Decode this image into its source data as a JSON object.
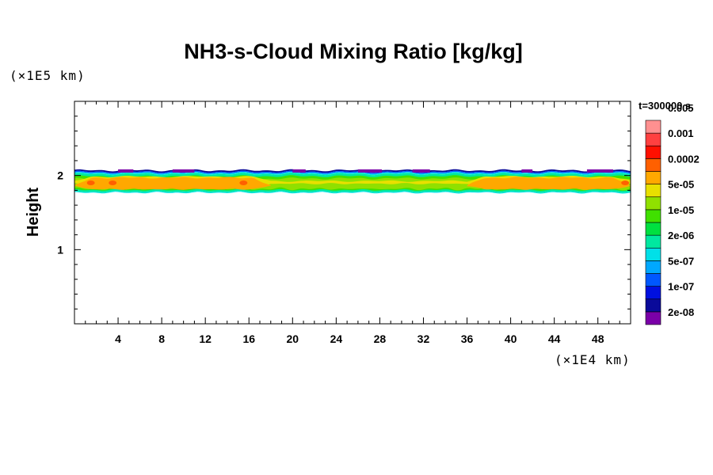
{
  "chart_data": {
    "type": "heatmap",
    "title": "NH3-s-Cloud Mixing Ratio [kg/kg]",
    "xlabel": "",
    "ylabel": "Height",
    "x_unit_label": "(×1E4 km)",
    "y_unit_label": "(×1E5 km)",
    "time_label": "t=300000 s",
    "xlim": [
      0,
      51
    ],
    "ylim": [
      0,
      3
    ],
    "x_ticks": [
      4,
      8,
      12,
      16,
      20,
      24,
      28,
      32,
      36,
      40,
      44,
      48
    ],
    "x_tick_labels": [
      "4",
      "8",
      "12",
      "16",
      "20",
      "24",
      "28",
      "32",
      "36",
      "40",
      "44",
      "48"
    ],
    "y_ticks": [
      1,
      2
    ],
    "y_tick_labels": [
      "1",
      "2"
    ],
    "colorbar": {
      "colors": [
        "#7a00a8",
        "#0a0a9a",
        "#0010e0",
        "#0058ff",
        "#00a8ff",
        "#00e0e8",
        "#00e8a0",
        "#00e040",
        "#40e000",
        "#90e000",
        "#e8e000",
        "#ffa800",
        "#ff6000",
        "#ff1000",
        "#ff4040",
        "#ff9090"
      ],
      "labels": [
        "2e-08",
        "1e-07",
        "5e-07",
        "2e-06",
        "1e-05",
        "5e-05",
        "0.0002",
        "0.001",
        "0.005"
      ]
    },
    "cloud_layer": {
      "base_height": 1.78,
      "top_height": 2.07,
      "core_level": "0.0002",
      "core_segments": [
        [
          0,
          18
        ],
        [
          36,
          51
        ]
      ],
      "max_spots_x": [
        1.5,
        3.5,
        15.5,
        50.5
      ]
    }
  }
}
